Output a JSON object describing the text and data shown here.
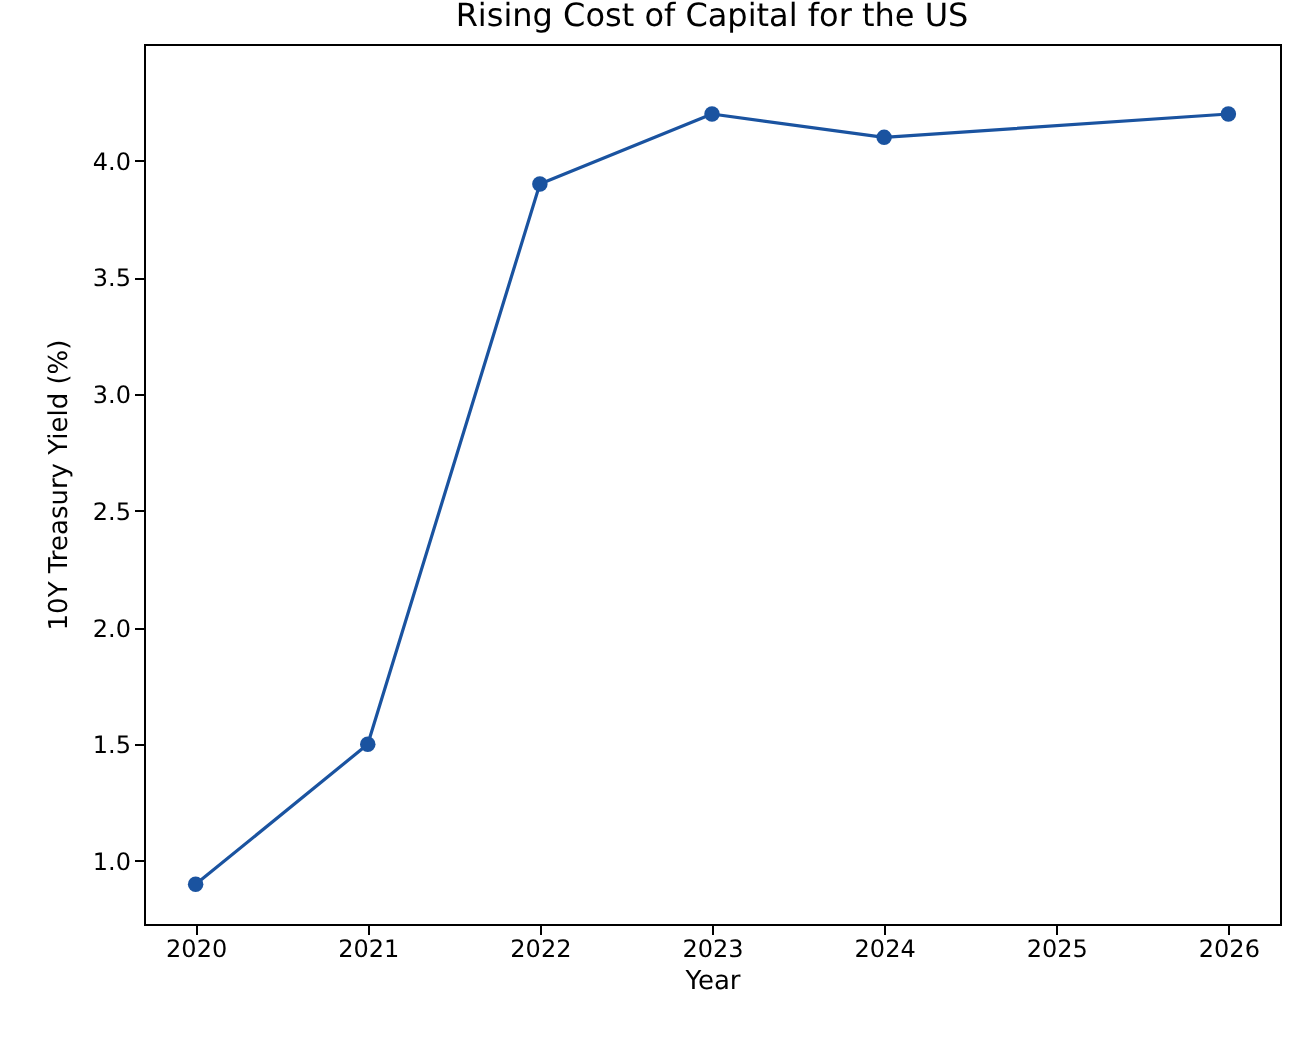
{
  "chart_data": {
    "type": "line",
    "title": "Rising Cost of Capital for the US",
    "xlabel": "Year",
    "ylabel": "10Y Treasury Yield (%)",
    "x": [
      2020,
      2021,
      2022,
      2023,
      2024,
      2026
    ],
    "series": [
      {
        "color": "#1a53a0",
        "values": [
          0.9,
          1.5,
          3.9,
          4.2,
          4.1,
          4.2
        ]
      }
    ],
    "xlim": [
      2019.7,
      2026.3
    ],
    "xticks": [
      2020,
      2021,
      2022,
      2023,
      2024,
      2025,
      2026
    ],
    "ylim": [
      0.73,
      4.5
    ],
    "yticks": [
      {
        "value": 1,
        "label": "1.0"
      },
      1.5,
      {
        "value": 2,
        "label": "2.0"
      },
      2.5,
      {
        "value": 3,
        "label": "3.0"
      },
      3.5,
      {
        "value": 4,
        "label": "4.0"
      }
    ],
    "marker": "circle",
    "line_style": "solid",
    "grid": false,
    "legend": false
  }
}
